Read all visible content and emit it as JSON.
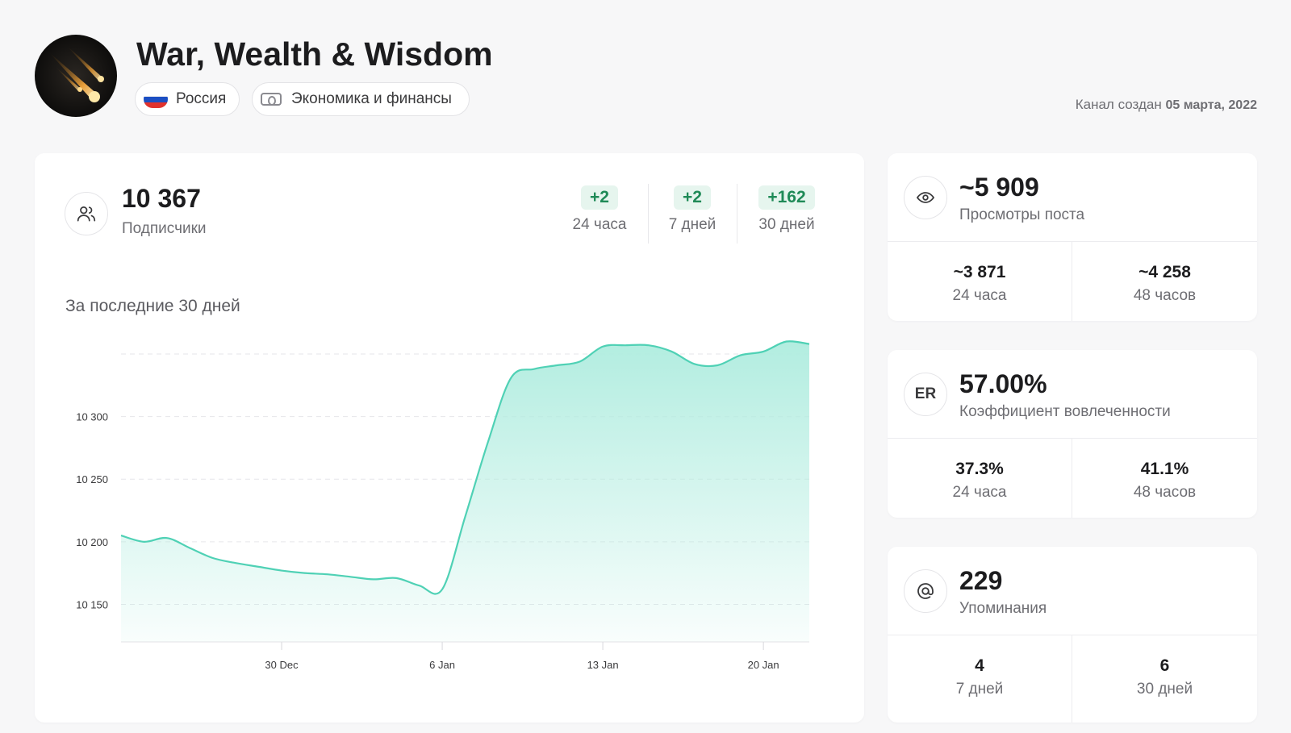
{
  "channel": {
    "title": "War, Wealth & Wisdom",
    "country": "Россия",
    "category": "Экономика и финансы",
    "created_label": "Канал создан",
    "created_date": "05 марта, 2022"
  },
  "subscribers": {
    "value": "10 367",
    "label": "Подписчики",
    "growth": [
      {
        "value": "+2",
        "label": "24 часа"
      },
      {
        "value": "+2",
        "label": "7 дней"
      },
      {
        "value": "+162",
        "label": "30 дней"
      }
    ],
    "period_label": "За последние 30 дней"
  },
  "chart_data": {
    "type": "area",
    "title": "",
    "xlabel": "",
    "ylabel": "",
    "ylim": [
      10120,
      10370
    ],
    "yticks": [
      10150,
      10200,
      10250,
      10300
    ],
    "ytick_labels": [
      "10 150",
      "10 200",
      "10 250",
      "10 300"
    ],
    "xticks": [
      7,
      14,
      21,
      28
    ],
    "xtick_labels": [
      "30 Dec",
      "6 Jan",
      "13 Jan",
      "20 Jan"
    ],
    "x": [
      0,
      1,
      2,
      3,
      4,
      5,
      6,
      7,
      8,
      9,
      10,
      11,
      12,
      13,
      14,
      15,
      16,
      17,
      18,
      19,
      20,
      21,
      22,
      23,
      24,
      25,
      26,
      27,
      28,
      29,
      30
    ],
    "values": [
      10205,
      10200,
      10203,
      10195,
      10187,
      10183,
      10180,
      10177,
      10175,
      10174,
      10172,
      10170,
      10171,
      10165,
      10162,
      10220,
      10280,
      10331,
      10338,
      10341,
      10344,
      10356,
      10357,
      10357,
      10352,
      10342,
      10341,
      10349,
      10352,
      10360,
      10358
    ],
    "grid": true,
    "legend": "none",
    "line_color": "#4fd1b5",
    "fill_color": "#b2ede0"
  },
  "views": {
    "value": "~5 909",
    "label": "Просмотры поста",
    "cells": [
      {
        "value": "~3 871",
        "label": "24 часа"
      },
      {
        "value": "~4 258",
        "label": "48 часов"
      }
    ]
  },
  "er": {
    "icon_text": "ER",
    "value": "57.00%",
    "label": "Коэффициент вовлеченности",
    "cells": [
      {
        "value": "37.3%",
        "label": "24 часа"
      },
      {
        "value": "41.1%",
        "label": "48 часов"
      }
    ]
  },
  "mentions": {
    "value": "229",
    "label": "Упоминания",
    "cells": [
      {
        "value": "4",
        "label": "7 дней"
      },
      {
        "value": "6",
        "label": "30 дней"
      }
    ]
  },
  "colors": {
    "accent_green": "#1f8a57",
    "badge_bg": "#e6f5ee",
    "chart_line": "#4fd1b5"
  },
  "icons": {
    "subscribers": "users-icon",
    "views": "eye-icon",
    "mentions": "at-icon",
    "category": "money-icon",
    "country": "russia-flag-icon"
  }
}
